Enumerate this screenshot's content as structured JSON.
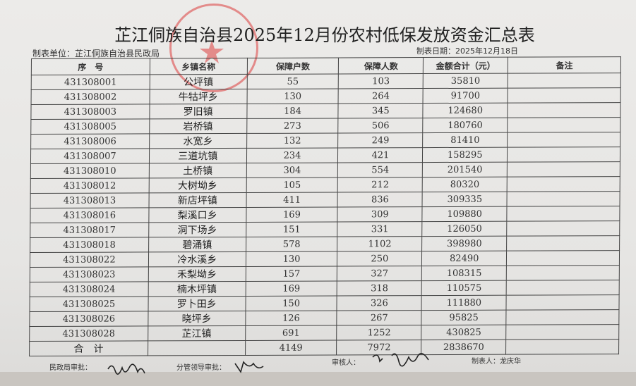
{
  "title": "芷江侗族自治县2025年12月份农村低保发放资金汇总表",
  "unit_label": "制表单位：芷江侗族自治县民政局",
  "date_label": "制表日期：2025年12月18日",
  "headers": [
    "序　号",
    "乡镇名称",
    "保障户数",
    "保障人数",
    "金额合计（元）",
    "备注"
  ],
  "rows": [
    [
      "431308001",
      "公坪镇",
      "55",
      "103",
      "35810"
    ],
    [
      "431308002",
      "牛牯坪乡",
      "130",
      "264",
      "91700"
    ],
    [
      "431308003",
      "罗旧镇",
      "184",
      "345",
      "124680"
    ],
    [
      "431308005",
      "岩桥镇",
      "273",
      "506",
      "180760"
    ],
    [
      "431308006",
      "水宽乡",
      "132",
      "249",
      "81410"
    ],
    [
      "431308007",
      "三道坑镇",
      "234",
      "421",
      "158295"
    ],
    [
      "431308010",
      "土桥镇",
      "304",
      "554",
      "201540"
    ],
    [
      "431308012",
      "大树坳乡",
      "105",
      "212",
      "80320"
    ],
    [
      "431308013",
      "新店坪镇",
      "411",
      "836",
      "309335"
    ],
    [
      "431308016",
      "梨溪口乡",
      "169",
      "309",
      "109880"
    ],
    [
      "431308017",
      "洞下场乡",
      "151",
      "331",
      "126050"
    ],
    [
      "431308018",
      "碧涌镇",
      "578",
      "1102",
      "398980"
    ],
    [
      "431308022",
      "冷水溪乡",
      "130",
      "250",
      "82490"
    ],
    [
      "431308023",
      "禾梨坳乡",
      "157",
      "327",
      "108315"
    ],
    [
      "431308024",
      "楠木坪镇",
      "169",
      "318",
      "110575"
    ],
    [
      "431308025",
      "罗卜田乡",
      "150",
      "326",
      "111880"
    ],
    [
      "431308026",
      "晓坪乡",
      "126",
      "267",
      "95825"
    ],
    [
      "431308028",
      "芷江镇",
      "691",
      "1252",
      "430825"
    ]
  ],
  "total": {
    "label": "合　计",
    "households": "4149",
    "people": "7972",
    "amount": "2838670"
  },
  "footer": {
    "civil_affairs": "民政局审批：",
    "leader": "分管领导审批：",
    "reviewer": "审核人：",
    "preparer": "制表人：龙庆华"
  },
  "stamp_color": "#dc3c3c"
}
